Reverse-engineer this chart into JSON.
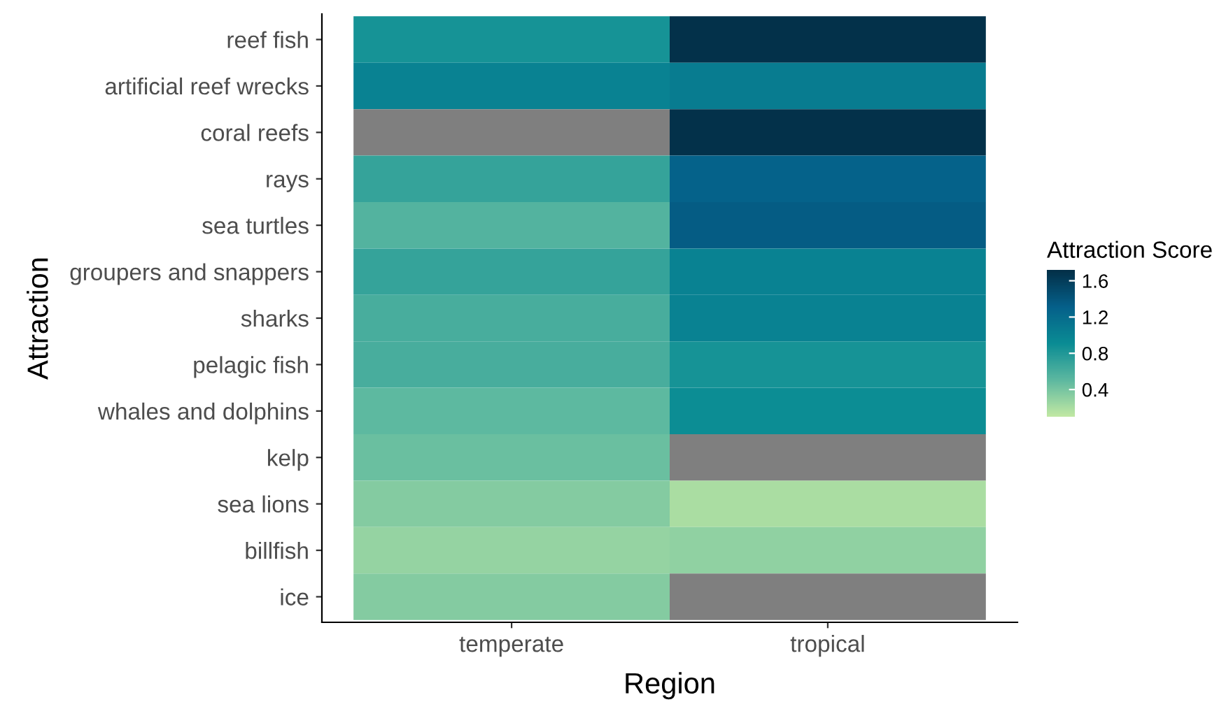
{
  "chart_data": {
    "type": "heatmap",
    "xlabel": "Region",
    "ylabel": "Attraction",
    "clabel": "Attraction Score",
    "categories": [
      "temperate",
      "tropical"
    ],
    "y_categories": [
      "reef fish",
      "artificial reef wrecks",
      "coral reefs",
      "rays",
      "sea turtles",
      "groupers and snappers",
      "sharks",
      "pelagic fish",
      "whales and dolphins",
      "kelp",
      "sea lions",
      "billfish",
      "ice"
    ],
    "cells": [
      [
        0.85,
        1.7
      ],
      [
        1.0,
        1.05
      ],
      [
        null,
        1.7
      ],
      [
        0.7,
        1.3
      ],
      [
        0.55,
        1.35
      ],
      [
        0.7,
        1.0
      ],
      [
        0.6,
        1.0
      ],
      [
        0.6,
        0.85
      ],
      [
        0.5,
        0.9
      ],
      [
        0.45,
        null
      ],
      [
        0.35,
        0.2
      ],
      [
        0.28,
        0.3
      ],
      [
        0.35,
        null
      ]
    ],
    "clim": [
      0.1,
      1.72
    ],
    "cticks": [
      0.4,
      0.8,
      1.2,
      1.6
    ],
    "colors": [
      "#c2e9a3",
      "#5cb8a0",
      "#0a8c94",
      "#05608a",
      "#032f47"
    ],
    "grid": false
  }
}
